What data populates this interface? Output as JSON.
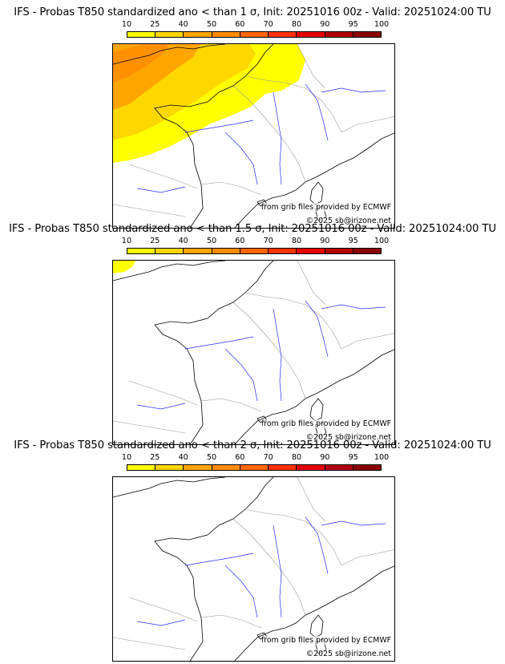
{
  "scale": {
    "ticks": [
      "10",
      "25",
      "40",
      "50",
      "60",
      "70",
      "80",
      "90",
      "95",
      "100"
    ],
    "colors": [
      "#ffff00",
      "#ffd700",
      "#ffa500",
      "#ff8c00",
      "#ff6600",
      "#ff3300",
      "#e60000",
      "#b30000",
      "#8b0000"
    ]
  },
  "panels": [
    {
      "title": "IFS - Probas T850  standardized ano < than 1 σ, Init: 20251016 00z - Valid: 20251024:00 TU",
      "grib_credit": "from grib files provided by ECMWF",
      "copyright": "©2025 sb@irizone.net",
      "probability_levels_shown": [
        "10",
        "25",
        "40",
        "50"
      ]
    },
    {
      "title": "IFS - Probas T850  standardized ano < than 1.5 σ, Init: 20251016 00z - Valid: 20251024:00 TU",
      "grib_credit": "from grib files provided by ECMWF",
      "copyright": "©2025 sb@irizone.net",
      "probability_levels_shown": [
        "10"
      ]
    },
    {
      "title": "IFS - Probas T850  standardized ano < than 2 σ, Init: 20251016 00z - Valid: 20251024:00 TU",
      "grib_credit": "from grib files provided by ECMWF",
      "copyright": "©2025 sb@irizone.net",
      "probability_levels_shown": []
    }
  ]
}
